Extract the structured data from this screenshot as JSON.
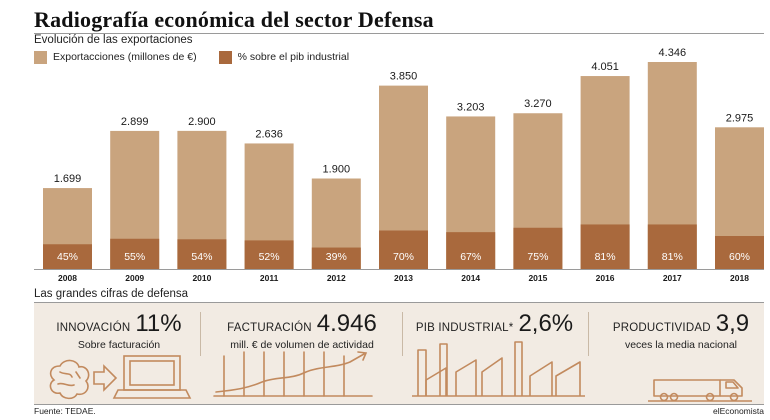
{
  "header": {
    "title": "Radiografía económica del sector Defensa",
    "subtitle": "Evolución de las exportaciones"
  },
  "colors": {
    "exports": "#c9a47e",
    "pct": "#a9693d",
    "panel": "#f2ebe3",
    "icon_stroke": "#c28a5e"
  },
  "chart_data": {
    "type": "bar",
    "categories": [
      "2008",
      "2009",
      "2010",
      "2011",
      "2012",
      "2013",
      "2014",
      "2015",
      "2016",
      "2017",
      "2018"
    ],
    "series": [
      {
        "name": "Exportacciones (millones de €)",
        "values": [
          1699,
          2899,
          2900,
          2636,
          1900,
          3850,
          3203,
          3270,
          4051,
          4346,
          2975
        ],
        "labels": [
          "1.699",
          "2.899",
          "2.900",
          "2.636",
          "1.900",
          "3.850",
          "3.203",
          "3.270",
          "4.051",
          "4.346",
          "2.975"
        ]
      },
      {
        "name": "% sobre el pib industrial",
        "values": [
          45,
          55,
          54,
          52,
          39,
          70,
          67,
          75,
          81,
          81,
          60
        ],
        "labels": [
          "45%",
          "55%",
          "54%",
          "52%",
          "39%",
          "70%",
          "67%",
          "75%",
          "81%",
          "81%",
          "60%"
        ]
      }
    ],
    "legend_position": "top-left",
    "grid": false
  },
  "figures": {
    "title": "Las grandes cifras de defensa",
    "items": [
      {
        "label": "INNOVACIÓN",
        "value": "11%",
        "sub": "Sobre facturación",
        "icon": "brain-computer-icon"
      },
      {
        "label": "FACTURACIÓN",
        "value": "4.946",
        "sub": "mill. € de volumen de actividad",
        "icon": "rising-line-chart-icon"
      },
      {
        "label": "PIB INDUSTRIAL*",
        "value": "2,6%",
        "sub": "",
        "icon": "factory-icon"
      },
      {
        "label": "PRODUCTIVIDAD",
        "value": "3,9",
        "sub": "veces la media nacional",
        "icon": "truck-icon"
      }
    ]
  },
  "footer": {
    "source": "Fuente: TEDAE.",
    "brand": "elEconomista"
  }
}
